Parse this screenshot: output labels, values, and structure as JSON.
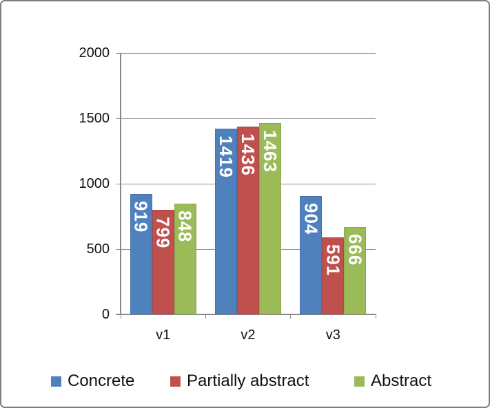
{
  "chart_data": {
    "type": "bar",
    "title": "",
    "categories": [
      "v1",
      "v2",
      "v3"
    ],
    "series": [
      {
        "name": "Concrete",
        "color": "#4F81BD",
        "values": [
          919,
          1419,
          904
        ]
      },
      {
        "name": "Partially abstract",
        "color": "#C0504D",
        "values": [
          799,
          1436,
          591
        ]
      },
      {
        "name": "Abstract",
        "color": "#9BBB59",
        "values": [
          848,
          1463,
          666
        ]
      }
    ],
    "xlabel": "",
    "ylabel": "",
    "ylim": [
      0,
      2000
    ],
    "yticks": [
      0,
      500,
      1000,
      1500,
      2000
    ],
    "ytick_labels": [
      "0",
      "500",
      "1000",
      "1500",
      "2000"
    ],
    "grid": true,
    "legend_position": "bottom",
    "data_labels": {
      "shown": true,
      "orientation": "vertical",
      "color": "#ffffff"
    }
  },
  "legend": {
    "items": [
      {
        "label": "Concrete",
        "color": "#4F81BD"
      },
      {
        "label": "Partially abstract",
        "color": "#C0504D"
      },
      {
        "label": "Abstract",
        "color": "#9BBB59"
      }
    ]
  },
  "colors": {
    "background": "#ffffff",
    "frame_border": "#7e7e7e",
    "gridline": "#898989",
    "tick_text": "#111111",
    "data_label_text": "#ffffff"
  }
}
